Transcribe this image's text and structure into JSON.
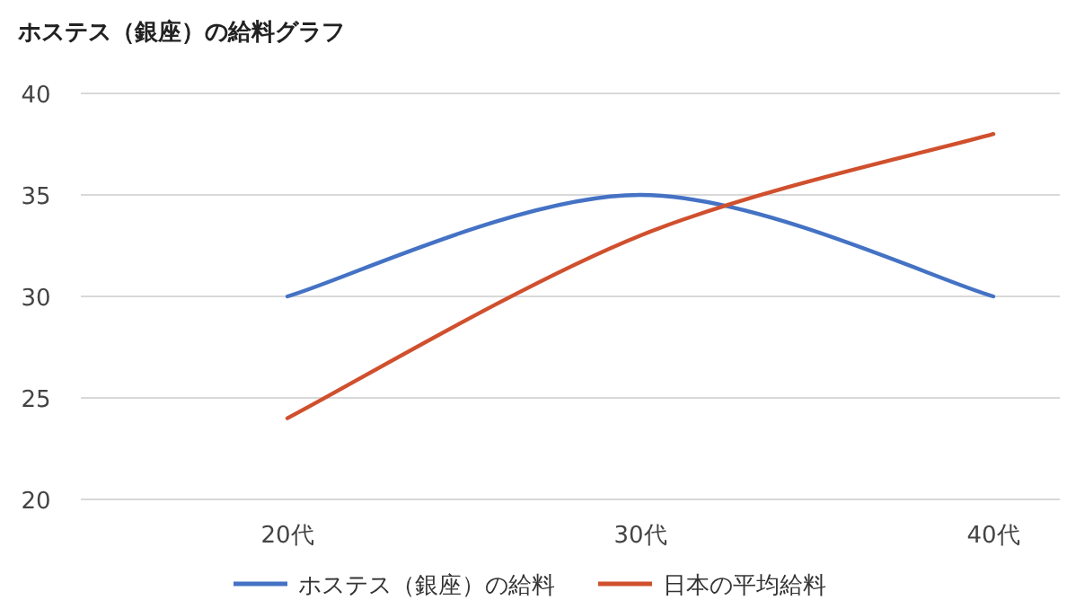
{
  "chart_data": {
    "type": "line",
    "title": "ホステス（銀座）の給料グラフ",
    "categories": [
      "20代",
      "30代",
      "40代"
    ],
    "series": [
      {
        "name": "ホステス（銀座）の給料",
        "color": "#4472c4",
        "values": [
          30,
          35,
          30
        ]
      },
      {
        "name": "日本の平均給料",
        "color": "#d0502e",
        "values": [
          24,
          33,
          38
        ]
      }
    ],
    "ylim": [
      20,
      40
    ],
    "yticks": [
      20,
      25,
      30,
      35,
      40
    ],
    "grid": "y",
    "legend": "bottom"
  }
}
